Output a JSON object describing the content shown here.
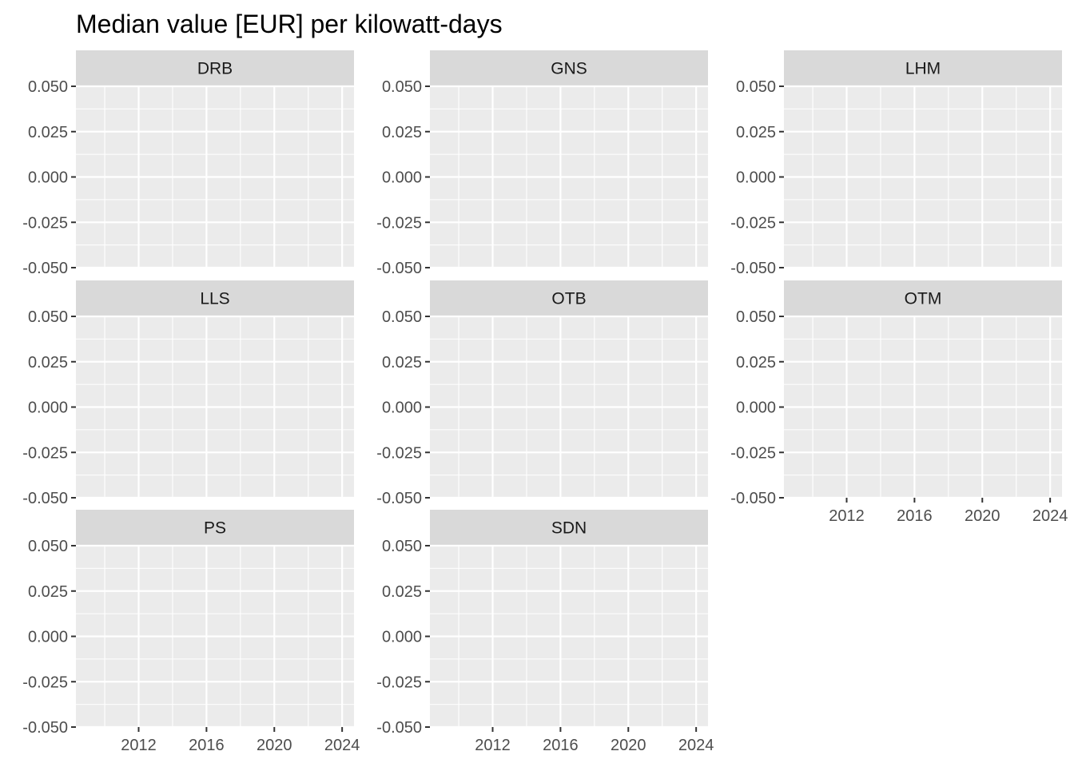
{
  "chart_data": {
    "type": "line",
    "title": "Median value [EUR] per kilowatt-days",
    "xlabel": "",
    "ylabel": "",
    "layout": "facet_wrap",
    "ncol": 3,
    "panels": [
      {
        "label": "DRB",
        "points": []
      },
      {
        "label": "GNS",
        "points": []
      },
      {
        "label": "LHM",
        "points": []
      },
      {
        "label": "LLS",
        "points": []
      },
      {
        "label": "OTB",
        "points": []
      },
      {
        "label": "OTM",
        "points": []
      },
      {
        "label": "PS",
        "points": []
      },
      {
        "label": "SDN",
        "points": []
      }
    ],
    "x_ticks": [
      2012,
      2016,
      2020,
      2024
    ],
    "x_minor": [
      2010,
      2014,
      2018,
      2022
    ],
    "xlim": [
      2008.3,
      2024.7
    ],
    "y_ticks": [
      "0.050",
      "0.025",
      "0.000",
      "-0.025",
      "-0.050"
    ],
    "y_tick_values": [
      0.05,
      0.025,
      0,
      -0.025,
      -0.05
    ],
    "ylim": [
      -0.05,
      0.05
    ],
    "grid": true,
    "colors": {
      "panel_background": "#ebebeb",
      "strip_background": "#d9d9d9",
      "grid": "#ffffff",
      "text": "#4d4d4d",
      "tick": "#333333"
    }
  }
}
